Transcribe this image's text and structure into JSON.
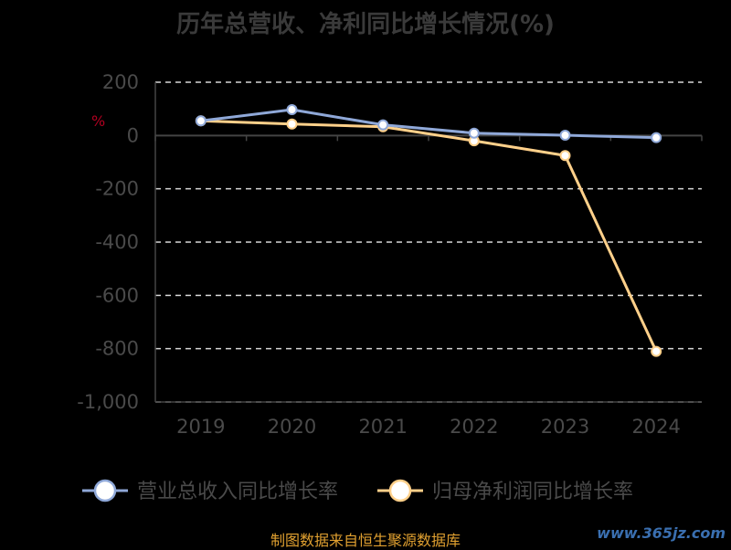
{
  "chart_data": {
    "type": "line",
    "title": "历年总营收、净利同比增长情况(%)",
    "ylabel": "%",
    "categories": [
      "2019",
      "2020",
      "2021",
      "2022",
      "2023",
      "2024"
    ],
    "ylim": [
      -1000,
      200
    ],
    "yticks": [
      200,
      0,
      -200,
      -400,
      -600,
      -800,
      -1000
    ],
    "ytick_labels": [
      "200",
      "0",
      "-200",
      "-400",
      "-600",
      "-800",
      "-1,000"
    ],
    "grid": true,
    "legend_position": "bottom",
    "series": [
      {
        "name": "营业总收入同比增长率",
        "color": "#8fa8d8",
        "values": [
          55,
          97,
          40,
          9,
          1,
          -8
        ]
      },
      {
        "name": "归母净利润同比增长率",
        "color": "#ffd08a",
        "values": [
          55,
          43,
          33,
          -20,
          -75,
          -810
        ]
      }
    ]
  },
  "footer": {
    "source": "制图数据来自恒生聚源数据库",
    "watermark": "www.365jz.com"
  }
}
